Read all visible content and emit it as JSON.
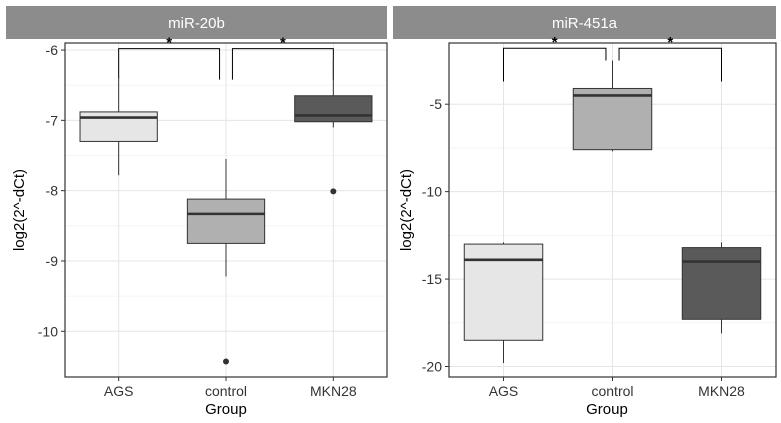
{
  "chart_data": [
    {
      "type": "boxplot",
      "title": "miR-20b",
      "xlabel": "Group",
      "ylabel": "log2(2^-dCt)",
      "ylim": [
        -10.65,
        -5.9
      ],
      "yticks": [
        -6,
        -7,
        -8,
        -9,
        -10
      ],
      "ytick_labels": [
        "-6",
        "-7",
        "-8",
        "-9",
        "-10"
      ],
      "categories": [
        "AGS",
        "control",
        "MKN28"
      ],
      "boxes": [
        {
          "group": "AGS",
          "whisker_low": -7.78,
          "q1": -7.3,
          "median": -6.96,
          "q3": -6.88,
          "whisker_high": -6.37,
          "outliers": [],
          "color": "#e6e6e6"
        },
        {
          "group": "control",
          "whisker_low": -9.22,
          "q1": -8.75,
          "median": -8.33,
          "q3": -8.12,
          "whisker_high": -7.55,
          "outliers": [
            -10.43
          ],
          "color": "#b0b0b0"
        },
        {
          "group": "MKN28",
          "whisker_low": -7.1,
          "q1": -7.02,
          "median": -6.93,
          "q3": -6.65,
          "whisker_high": -6.15,
          "outliers": [
            -8.01
          ],
          "color": "#5a5a5a"
        }
      ],
      "significance": [
        {
          "from": "AGS",
          "to": "control",
          "label": "*",
          "y": -5.98,
          "left_tip": -6.4,
          "right_tip": -6.42
        },
        {
          "from": "control",
          "to": "MKN28",
          "label": "*",
          "y": -5.98,
          "left_tip": -6.42,
          "right_tip": -6.42
        }
      ]
    },
    {
      "type": "boxplot",
      "title": "miR-451a",
      "xlabel": "Group",
      "ylabel": "log2(2^-dCt)",
      "ylim": [
        -20.6,
        -1.5
      ],
      "yticks": [
        -5,
        -10,
        -15,
        -20
      ],
      "ytick_labels": [
        "-5",
        "-10",
        "-15",
        "-20"
      ],
      "categories": [
        "AGS",
        "control",
        "MKN28"
      ],
      "boxes": [
        {
          "group": "AGS",
          "whisker_low": -19.8,
          "q1": -18.5,
          "median": -13.9,
          "q3": -13.0,
          "whisker_high": -12.9,
          "outliers": [],
          "color": "#e6e6e6"
        },
        {
          "group": "control",
          "whisker_low": -7.7,
          "q1": -7.6,
          "median": -4.5,
          "q3": -4.1,
          "whisker_high": -2.5,
          "outliers": [],
          "color": "#b0b0b0"
        },
        {
          "group": "MKN28",
          "whisker_low": -18.1,
          "q1": -17.3,
          "median": -14.0,
          "q3": -13.2,
          "whisker_high": -12.9,
          "outliers": [],
          "color": "#5a5a5a"
        }
      ],
      "significance": [
        {
          "from": "AGS",
          "to": "control",
          "label": "*",
          "y": -1.8,
          "left_tip": -3.7,
          "right_tip": -2.5
        },
        {
          "from": "control",
          "to": "MKN28",
          "label": "*",
          "y": -1.8,
          "left_tip": -2.5,
          "right_tip": -3.7
        }
      ]
    }
  ],
  "colors": {
    "strip_bg": "#8c8c8c",
    "panel_border": "#333333",
    "grid_major": "#e5e5e5",
    "grid_minor": "#f2f2f2",
    "box_stroke": "#333333"
  }
}
